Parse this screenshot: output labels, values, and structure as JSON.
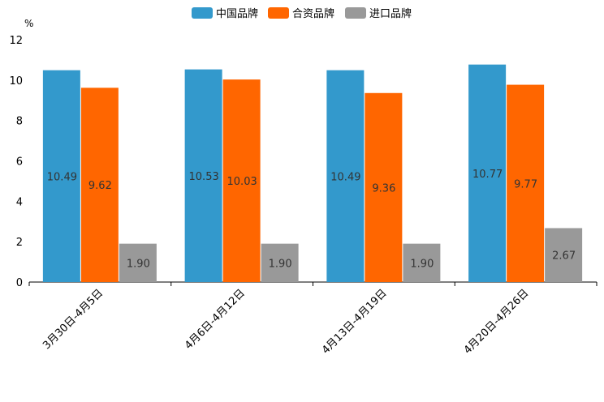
{
  "chart_data": {
    "type": "bar",
    "title": "",
    "xlabel": "",
    "ylabel": "%",
    "ylim": [
      0,
      12
    ],
    "yticks": [
      "0",
      "2",
      "4",
      "6",
      "8",
      "10",
      "12"
    ],
    "legend_position": "top-center",
    "grid": false,
    "categories": [
      "3月30日-4月5日",
      "4月6日-4月12日",
      "4月13日-4月19日",
      "4月20日-4月26日"
    ],
    "series": [
      {
        "name": "中国品牌",
        "color": "#3399CC",
        "values": [
          10.49,
          10.53,
          10.49,
          10.77
        ],
        "labels": [
          "10.49",
          "10.53",
          "10.49",
          "10.77"
        ]
      },
      {
        "name": "合资品牌",
        "color": "#FF6600",
        "values": [
          9.62,
          10.03,
          9.36,
          9.77
        ],
        "labels": [
          "9.62",
          "10.03",
          "9.36",
          "9.77"
        ]
      },
      {
        "name": "进口品牌",
        "color": "#999999",
        "values": [
          1.9,
          1.9,
          1.9,
          2.67
        ],
        "labels": [
          "1.90",
          "1.90",
          "1.90",
          "2.67"
        ]
      }
    ]
  }
}
